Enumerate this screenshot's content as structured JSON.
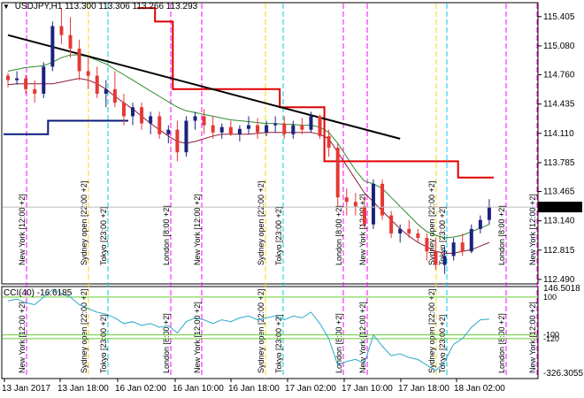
{
  "header": {
    "symbol": "USDJPY,H1",
    "open": "113.300",
    "high": "113.306",
    "low": "113.266",
    "close": "113.293"
  },
  "cci_header": {
    "label": "CCI(40)",
    "value": "-16.6185"
  },
  "price_axis": {
    "ticks": [
      "115.405",
      "115.080",
      "114.760",
      "114.435",
      "114.110",
      "113.785",
      "113.465",
      "113.140",
      "112.815",
      "112.490"
    ],
    "current": "113.293"
  },
  "cci_axis": {
    "max": "146.5018",
    "upper": "100",
    "lower": "-100",
    "lower2": "-120",
    "min": "-326.3055"
  },
  "time_axis": [
    "13 Jan 2017",
    "13 Jan 18:00",
    "16 Jan 02:00",
    "16 Jan 10:00",
    "16 Jan 18:00",
    "17 Jan 02:00",
    "17 Jan 10:00",
    "17 Jan 18:00",
    "18 Jan 02:00"
  ],
  "sessions": [
    {
      "label": "New York  [12:00 +2]",
      "color": "#ff00ff"
    },
    {
      "label": "Sydney open  [22:00 +2]",
      "color": "#ffd700"
    },
    {
      "label": "Tokyo  [23:00 +2]",
      "color": "#00ccdd"
    },
    {
      "label": "London  [8:00 +2]",
      "color": "#ff00ff"
    },
    {
      "label": "New York  [12:00 +2]",
      "color": "#ff00ff"
    },
    {
      "label": "Sydney open  [22:00 +2]",
      "color": "#ffd700"
    },
    {
      "label": "Tokyo  [23:00 +2]",
      "color": "#00ccdd"
    },
    {
      "label": "London  [8:00 +2]",
      "color": "#ff00ff"
    },
    {
      "label": "New York  [12:00 +2]",
      "color": "#ff00ff"
    },
    {
      "label": "Sydney open  [22:00 +2]",
      "color": "#ffd700"
    },
    {
      "label": "Tokyo  [23:00 +2]",
      "color": "#00ccdd"
    },
    {
      "label": "London  [8:00 +2]",
      "color": "#ff00ff"
    },
    {
      "label": "New York  [12:00 +2]",
      "color": "#ff00ff"
    }
  ],
  "colors": {
    "bull": "#1a237e",
    "bear": "#e53935",
    "trendline": "#000000",
    "cci": "#29a9c9",
    "levels": "#66cc33",
    "ma_slow": "#2e8b2e",
    "ma_fast": "#8b1a3a"
  },
  "chart_data": {
    "type": "candlestick",
    "symbol": "USDJPY",
    "timeframe": "H1",
    "ylim": [
      112.45,
      115.55
    ],
    "candles": [
      [
        114.75,
        114.78,
        114.62,
        114.7
      ],
      [
        114.7,
        114.8,
        114.65,
        114.72
      ],
      [
        114.72,
        114.76,
        114.55,
        114.6
      ],
      [
        114.6,
        114.7,
        114.45,
        114.55
      ],
      [
        114.55,
        114.9,
        114.5,
        114.85
      ],
      [
        114.85,
        115.35,
        114.8,
        115.3
      ],
      [
        115.3,
        115.5,
        115.1,
        115.2
      ],
      [
        115.2,
        115.4,
        114.95,
        115.05
      ],
      [
        115.05,
        115.15,
        114.7,
        114.8
      ],
      [
        114.8,
        114.95,
        114.6,
        114.75
      ],
      [
        114.75,
        114.85,
        114.5,
        114.55
      ],
      [
        114.55,
        114.7,
        114.4,
        114.6
      ],
      [
        114.6,
        114.8,
        114.4,
        114.45
      ],
      [
        114.45,
        114.55,
        114.2,
        114.3
      ],
      [
        114.3,
        114.45,
        114.2,
        114.4
      ],
      [
        114.4,
        114.45,
        114.15,
        114.22
      ],
      [
        114.22,
        114.35,
        114.1,
        114.3
      ],
      [
        114.3,
        114.35,
        114.05,
        114.1
      ],
      [
        114.1,
        114.2,
        114.0,
        114.15
      ],
      [
        114.15,
        114.25,
        113.8,
        113.9
      ],
      [
        113.9,
        114.3,
        113.85,
        114.25
      ],
      [
        114.25,
        114.35,
        114.15,
        114.3
      ],
      [
        114.3,
        114.38,
        114.1,
        114.2
      ],
      [
        114.2,
        114.3,
        114.05,
        114.12
      ],
      [
        114.12,
        114.22,
        114.05,
        114.18
      ],
      [
        114.18,
        114.25,
        114.08,
        114.1
      ],
      [
        114.1,
        114.2,
        114.02,
        114.16
      ],
      [
        114.16,
        114.3,
        114.1,
        114.2
      ],
      [
        114.2,
        114.28,
        114.05,
        114.12
      ],
      [
        114.12,
        114.25,
        114.08,
        114.2
      ],
      [
        114.2,
        114.3,
        114.12,
        114.22
      ],
      [
        114.22,
        114.3,
        114.05,
        114.1
      ],
      [
        114.1,
        114.25,
        114.05,
        114.2
      ],
      [
        114.2,
        114.28,
        114.1,
        114.15
      ],
      [
        114.15,
        114.35,
        114.12,
        114.3
      ],
      [
        114.3,
        114.32,
        114.05,
        114.08
      ],
      [
        114.08,
        114.15,
        113.85,
        113.95
      ],
      [
        113.95,
        114.0,
        113.3,
        113.4
      ],
      [
        113.4,
        113.5,
        113.2,
        113.35
      ],
      [
        113.35,
        113.45,
        113.2,
        113.3
      ],
      [
        113.3,
        113.4,
        113.05,
        113.1
      ],
      [
        113.1,
        113.6,
        113.05,
        113.55
      ],
      [
        113.55,
        113.6,
        113.15,
        113.2
      ],
      [
        113.2,
        113.25,
        112.95,
        113.0
      ],
      [
        113.0,
        113.1,
        112.9,
        113.05
      ],
      [
        113.05,
        113.15,
        112.95,
        113.0
      ],
      [
        113.0,
        113.05,
        112.9,
        112.95
      ],
      [
        112.95,
        113.0,
        112.7,
        112.8
      ],
      [
        112.8,
        112.95,
        112.6,
        112.65
      ],
      [
        112.65,
        112.85,
        112.55,
        112.75
      ],
      [
        112.75,
        112.95,
        112.7,
        112.9
      ],
      [
        112.9,
        113.0,
        112.75,
        112.8
      ],
      [
        112.8,
        113.1,
        112.78,
        113.05
      ],
      [
        113.05,
        113.2,
        113.0,
        113.15
      ],
      [
        113.15,
        113.38,
        113.1,
        113.29
      ]
    ],
    "sma_slow": [
      114.8,
      114.82,
      114.84,
      114.85,
      114.86,
      114.9,
      114.95,
      114.98,
      114.98,
      114.96,
      114.92,
      114.88,
      114.82,
      114.76,
      114.7,
      114.64,
      114.58,
      114.52,
      114.46,
      114.4,
      114.36,
      114.34,
      114.32,
      114.3,
      114.28,
      114.26,
      114.25,
      114.24,
      114.23,
      114.22,
      114.22,
      114.21,
      114.21,
      114.2,
      114.2,
      114.18,
      114.12,
      114.0,
      113.85,
      113.7,
      113.58,
      113.55,
      113.5,
      113.4,
      113.3,
      113.2,
      113.1,
      113.02,
      112.98,
      112.95,
      112.96,
      112.98,
      113.02,
      113.06,
      113.1
    ],
    "sma_fast": [
      114.65,
      114.66,
      114.66,
      114.66,
      114.66,
      114.66,
      114.68,
      114.7,
      114.72,
      114.7,
      114.66,
      114.6,
      114.52,
      114.45,
      114.38,
      114.3,
      114.22,
      114.15,
      114.08,
      114.02,
      114.0,
      114.02,
      114.05,
      114.08,
      114.1,
      114.1,
      114.1,
      114.1,
      114.11,
      114.12,
      114.12,
      114.12,
      114.12,
      114.12,
      114.12,
      114.1,
      114.05,
      113.9,
      113.75,
      113.6,
      113.45,
      113.35,
      113.25,
      113.15,
      113.05,
      112.97,
      112.9,
      112.85,
      112.8,
      112.78,
      112.78,
      112.8,
      112.82,
      112.86,
      112.9
    ],
    "trailing_stop_upper": [
      null,
      null,
      null,
      null,
      null,
      null,
      null,
      null,
      null,
      null,
      null,
      null,
      null,
      null,
      null,
      115.5,
      115.5,
      115.35,
      115.35,
      114.6,
      114.6,
      114.6,
      114.6,
      114.6,
      114.6,
      114.6,
      114.6,
      114.6,
      114.6,
      114.6,
      114.6,
      114.4,
      114.4,
      114.4,
      114.4,
      114.4,
      113.8,
      113.8,
      113.8,
      113.8,
      113.8,
      113.8,
      113.8,
      113.8,
      113.8,
      113.8,
      113.8,
      113.8,
      113.8,
      113.8,
      113.8,
      113.62,
      113.62,
      113.62,
      113.62
    ],
    "trailing_stop_lower": [
      114.1,
      114.1,
      114.1,
      114.1,
      114.1,
      114.25,
      114.25,
      114.25,
      114.25,
      114.25,
      114.25,
      114.25,
      114.25,
      114.25
    ],
    "trendline": [
      [
        0,
        115.2
      ],
      [
        44,
        114.05
      ]
    ],
    "cci": [
      80,
      90,
      70,
      60,
      100,
      140,
      120,
      100,
      60,
      40,
      20,
      10,
      -10,
      -40,
      -30,
      -50,
      -40,
      -60,
      -50,
      -90,
      -30,
      -10,
      -20,
      -40,
      -20,
      -30,
      -10,
      0,
      -20,
      -10,
      0,
      -20,
      0,
      -10,
      20,
      -40,
      -120,
      -260,
      -240,
      -230,
      -250,
      -100,
      -160,
      -210,
      -200,
      -220,
      -230,
      -260,
      -290,
      -240,
      -150,
      -120,
      -60,
      -20,
      -16.6
    ]
  }
}
